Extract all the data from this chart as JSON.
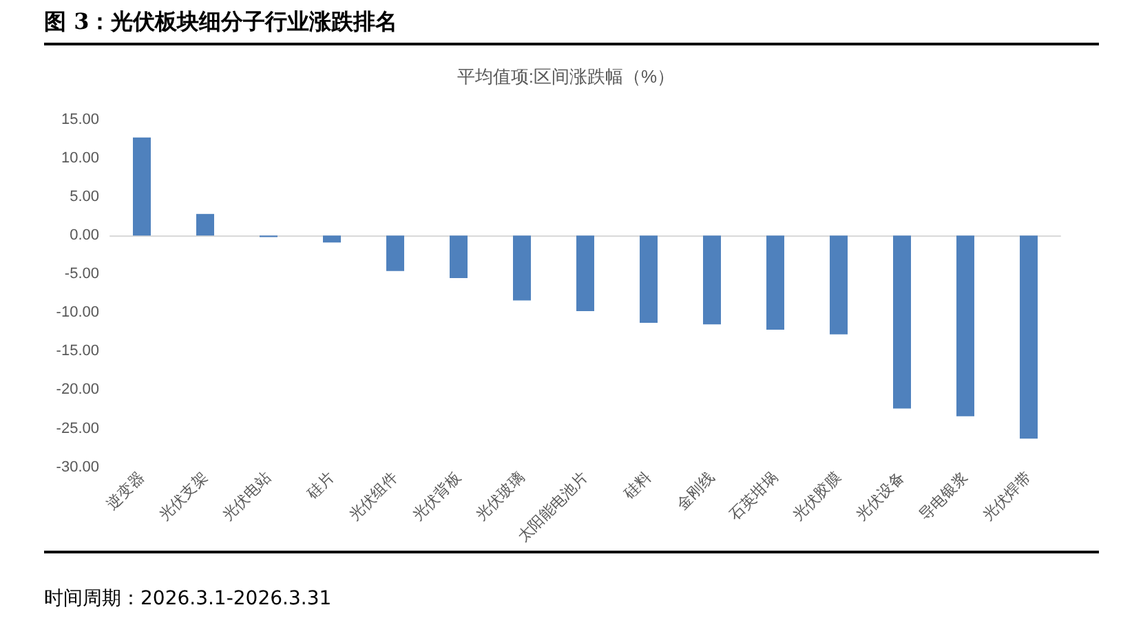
{
  "chart_data": {
    "type": "bar",
    "title": "图 3：光伏板块细分子行业涨跌排名",
    "subtitle": "平均值项:区间涨跌幅（%）",
    "categories": [
      "逆变器",
      "光伏支架",
      "光伏电站",
      "硅片",
      "光伏组件",
      "光伏背板",
      "光伏玻璃",
      "太阳能电池片",
      "硅料",
      "金刚线",
      "石英坩埚",
      "光伏胶膜",
      "光伏设备",
      "导电银浆",
      "光伏焊带"
    ],
    "values": [
      12.7,
      2.8,
      -0.2,
      -0.9,
      -4.6,
      -5.5,
      -8.4,
      -9.8,
      -11.3,
      -11.5,
      -12.2,
      -12.8,
      -22.4,
      -23.4,
      -26.3
    ],
    "color": "#4f81bd",
    "ylim": [
      -30,
      15
    ],
    "yticks": [
      {
        "value": -30,
        "label": "-30.00"
      },
      {
        "value": -25,
        "label": "-25.00"
      },
      {
        "value": -20,
        "label": "-20.00"
      },
      {
        "value": -15,
        "label": "-15.00"
      },
      {
        "value": -10,
        "label": "-10.00"
      },
      {
        "value": -5,
        "label": "-5.00"
      },
      {
        "value": 0,
        "label": "0.00"
      },
      {
        "value": 5,
        "label": "5.00"
      },
      {
        "value": 10,
        "label": "10.00"
      },
      {
        "value": 15,
        "label": "15.00"
      }
    ],
    "annotations": [
      "时间周期：2026.3.1-2026.3.31"
    ]
  }
}
